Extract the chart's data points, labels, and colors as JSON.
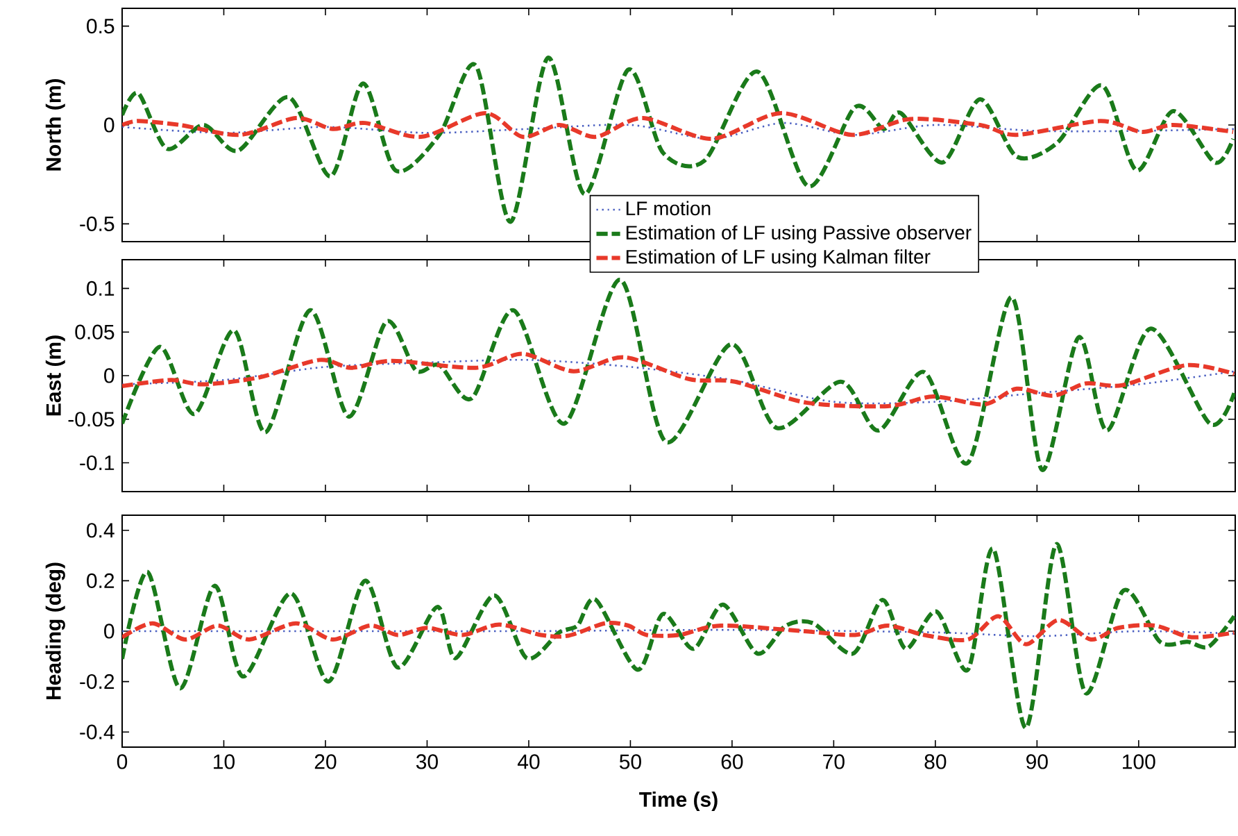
{
  "chart_data": [
    {
      "type": "line",
      "ylabel": "North (m)",
      "xlim": [
        0,
        109.5
      ],
      "ylim": [
        -0.59,
        0.59
      ],
      "xticks": [
        0,
        10,
        20,
        30,
        40,
        50,
        60,
        70,
        80,
        90,
        100
      ],
      "yticks": [
        -0.5,
        0,
        0.5
      ],
      "tick_labels": "y",
      "legend": "bottom",
      "grid": false,
      "series": [
        {
          "name": "LF motion",
          "color": "#4a5fc1",
          "line_style": "dotted",
          "x": [
            0,
            10,
            20,
            30,
            40,
            50,
            58,
            65,
            72,
            80,
            90,
            100,
            109.5
          ],
          "values": [
            -0.01,
            -0.04,
            -0.01,
            -0.04,
            -0.02,
            0.0,
            -0.07,
            0.01,
            -0.05,
            0.0,
            -0.03,
            -0.03,
            -0.02
          ]
        },
        {
          "name": "Estimation of LF using Passive observer",
          "color": "#1a7a1a",
          "line_style": "dashed",
          "x": [
            0,
            1.6,
            4.4,
            8,
            11.4,
            16.4,
            20.5,
            23.7,
            26.9,
            31.2,
            34.8,
            38.2,
            41.9,
            45.5,
            49.8,
            53.2,
            57.3,
            62.5,
            67.5,
            72.1,
            74.9,
            76.6,
            80.7,
            84.4,
            88,
            92,
            96.4,
            99.8,
            103.4,
            107.5,
            109.3
          ],
          "values": [
            0.05,
            0.16,
            -0.12,
            0,
            -0.13,
            0.14,
            -0.26,
            0.21,
            -0.23,
            -0.05,
            0.3,
            -0.49,
            0.34,
            -0.35,
            0.28,
            -0.14,
            -0.18,
            0.27,
            -0.31,
            0.09,
            -0.02,
            0.06,
            -0.19,
            0.13,
            -0.16,
            -0.09,
            0.2,
            -0.23,
            0.07,
            -0.19,
            -0.07
          ]
        },
        {
          "name": "Estimation of LF using Kalman filter",
          "color": "#e8392a",
          "line_style": "dashed",
          "x": [
            0,
            1.6,
            5.7,
            11.6,
            17.1,
            20.7,
            23.9,
            29.4,
            35.7,
            39.4,
            43,
            46.6,
            51.2,
            58,
            64.8,
            71.8,
            77.5,
            84.4,
            88,
            96.2,
            100.3,
            103.4,
            109.3
          ],
          "values": [
            0,
            0.02,
            0,
            -0.05,
            0.035,
            -0.02,
            0.01,
            -0.06,
            0.06,
            -0.06,
            0,
            -0.06,
            0.035,
            -0.07,
            0.06,
            -0.05,
            0.03,
            0,
            -0.05,
            0.02,
            -0.035,
            0,
            -0.035
          ]
        }
      ]
    },
    {
      "type": "line",
      "ylabel": "East (m)",
      "xlim": [
        0,
        109.5
      ],
      "ylim": [
        -0.133,
        0.133
      ],
      "xticks": [
        0,
        10,
        20,
        30,
        40,
        50,
        60,
        70,
        80,
        90,
        100
      ],
      "yticks": [
        -0.1,
        -0.05,
        0,
        0.05,
        0.1
      ],
      "tick_labels": "y",
      "grid": false,
      "series": [
        {
          "color": "#4a5fc1",
          "line_style": "dotted",
          "x": [
            0,
            10,
            20,
            30,
            40,
            50,
            60,
            70,
            80,
            90,
            100,
            109.5
          ],
          "values": [
            -0.01,
            -0.005,
            0.01,
            0.015,
            0.018,
            0.01,
            -0.005,
            -0.03,
            -0.03,
            -0.02,
            -0.01,
            0.005
          ]
        },
        {
          "color": "#1a7a1a",
          "line_style": "dashed",
          "x": [
            0,
            3.7,
            7.1,
            11,
            14.1,
            18.5,
            22.3,
            26,
            28.9,
            31.2,
            34.4,
            38.5,
            43.5,
            49,
            53.5,
            59.9,
            64.4,
            70.7,
            74.4,
            78.9,
            83.2,
            87.5,
            90.5,
            94.1,
            96.9,
            101.2,
            107,
            109.4
          ],
          "values": [
            -0.055,
            0.033,
            -0.044,
            0.052,
            -0.065,
            0.075,
            -0.047,
            0.062,
            0.006,
            0.012,
            -0.026,
            0.075,
            -0.055,
            0.11,
            -0.076,
            0.036,
            -0.06,
            -0.007,
            -0.063,
            0.004,
            -0.1,
            0.09,
            -0.108,
            0.044,
            -0.063,
            0.054,
            -0.055,
            -0.02
          ]
        },
        {
          "color": "#e8392a",
          "line_style": "dashed",
          "x": [
            0,
            4.8,
            8,
            13.5,
            19.4,
            22.5,
            26.6,
            34.8,
            39.4,
            44.4,
            49.4,
            55.8,
            60.3,
            67.3,
            75.3,
            79.8,
            84.8,
            88,
            91.6,
            94.8,
            98.4,
            104.7,
            109.4
          ],
          "values": [
            -0.012,
            -0.005,
            -0.01,
            -0.002,
            0.018,
            0.009,
            0.017,
            0.009,
            0.025,
            0.005,
            0.021,
            -0.004,
            -0.007,
            -0.031,
            -0.035,
            -0.024,
            -0.033,
            -0.015,
            -0.023,
            -0.009,
            -0.011,
            0.012,
            0.002
          ]
        }
      ]
    },
    {
      "type": "line",
      "ylabel": "Heading (deg)",
      "xlabel": "Time (s)",
      "xlim": [
        0,
        109.5
      ],
      "ylim": [
        -0.46,
        0.46
      ],
      "xticks": [
        0,
        10,
        20,
        30,
        40,
        50,
        60,
        70,
        80,
        90,
        100
      ],
      "yticks": [
        -0.4,
        -0.2,
        0,
        0.2,
        0.4
      ],
      "grid": false,
      "series": [
        {
          "color": "#4a5fc1",
          "line_style": "dotted",
          "x": [
            0,
            20,
            40,
            60,
            80,
            90,
            100,
            109.5
          ],
          "values": [
            0,
            0,
            0,
            0.005,
            -0.005,
            -0.02,
            0,
            -0.01
          ]
        },
        {
          "color": "#1a7a1a",
          "line_style": "dashed",
          "x": [
            0,
            2.5,
            5.7,
            9.1,
            11.9,
            16.6,
            20.3,
            23.9,
            27.1,
            31,
            32.8,
            36.6,
            39.8,
            43,
            44.8,
            46.6,
            50.7,
            53.2,
            56.2,
            59.1,
            62.5,
            65.3,
            68,
            71.9,
            74.8,
            77.1,
            80.1,
            83.2,
            85.7,
            88.9,
            91.9,
            94.8,
            98.5,
            102.1,
            104.8,
            106.9,
            109.4
          ],
          "values": [
            -0.11,
            0.235,
            -0.227,
            0.18,
            -0.18,
            0.15,
            -0.2,
            0.2,
            -0.144,
            0.096,
            -0.107,
            0.142,
            -0.107,
            -0.005,
            0.022,
            0.124,
            -0.153,
            0.068,
            -0.07,
            0.105,
            -0.089,
            0.022,
            0.031,
            -0.089,
            0.124,
            -0.07,
            0.078,
            -0.153,
            0.327,
            -0.384,
            0.345,
            -0.246,
            0.161,
            -0.042,
            -0.042,
            -0.061,
            0.059
          ]
        },
        {
          "color": "#e8392a",
          "line_style": "dashed",
          "x": [
            0,
            3,
            6.2,
            9.4,
            12.5,
            17.1,
            20.7,
            24.4,
            27.1,
            30,
            33.5,
            37.1,
            41.2,
            43.9,
            47.5,
            49.8,
            51.6,
            54.8,
            58.9,
            67,
            72.1,
            75.3,
            78.9,
            83.2,
            86.2,
            88.9,
            92.1,
            95.3,
            98,
            101.6,
            105.2,
            109.4
          ],
          "values": [
            -0.024,
            0.031,
            -0.033,
            0.022,
            -0.033,
            0.031,
            -0.033,
            0.022,
            -0.015,
            0.013,
            -0.015,
            0.026,
            -0.015,
            -0.018,
            0.031,
            0.022,
            -0.015,
            -0.015,
            0.022,
            0,
            -0.015,
            0.022,
            -0.015,
            -0.033,
            0.059,
            -0.052,
            0.044,
            -0.033,
            0.013,
            0.022,
            -0.024,
            -0.006
          ]
        }
      ]
    }
  ]
}
